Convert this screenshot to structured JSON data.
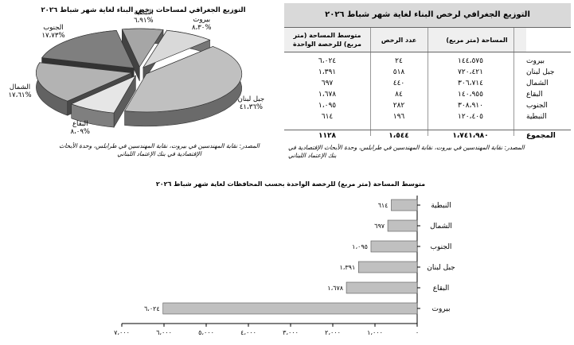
{
  "table": {
    "title": "التوزيع الجغرافي لرخص البناء لغاية شهر شباط ٢٠٢٦",
    "headers": {
      "area": "المساحة (متر مربع)",
      "count": "عدد الرخص",
      "avg": "متوسط المساحة (متر مربع) للرخصة الواحدة"
    },
    "rows": [
      {
        "name": "بيروت",
        "area": "١٤٤،٥٧٥",
        "count": "٢٤",
        "avg": "٦،٠٢٤"
      },
      {
        "name": "جبل لبنان",
        "area": "٧٢٠،٤٢١",
        "count": "٥١٨",
        "avg": "١،٣٩١"
      },
      {
        "name": "الشمال",
        "area": "٣٠٦،٧١٤",
        "count": "٤٤٠",
        "avg": "٦٩٧"
      },
      {
        "name": "البقاع",
        "area": "١٤٠،٩٥٥",
        "count": "٨٤",
        "avg": "١،٦٧٨"
      },
      {
        "name": "الجنوب",
        "area": "٣٠٨،٩١٠",
        "count": "٢٨٢",
        "avg": "١،٠٩٥"
      },
      {
        "name": "النبطية",
        "area": "١٢٠،٤٠٥",
        "count": "١٩٦",
        "avg": "٦١٤"
      }
    ],
    "total": {
      "name": "المجموع",
      "area": "١،٧٤١،٩٨٠",
      "count": "١،٥٤٤",
      "avg": "١١٢٨"
    },
    "source": "المصدر: نقابة المهندسين في بيروت، نقابة المهندسين في طرابلس، وحدة الأبحاث الإقتصادية في بنك الإعتماد اللبناني"
  },
  "pie": {
    "title": "التوزيع الجغرافي لمساحات رخص البناء لغاية شهر شباط ٢٠٢٦",
    "source": "المصدر: نقابة المهندسين في بيروت، نقابة المهندسين في طرابلس، وحدة الأبحاث الإقتصادية في بنك الإعتماد اللبناني"
  },
  "bars": {
    "title": "متوسط المساحة (متر مربع) للرخصة الواحدة بحسب المحافظات لغاية شهر شباط ٢٠٢٦",
    "xticks": [
      "٠",
      "١،٠٠٠",
      "٢،٠٠٠",
      "٣،٠٠٠",
      "٤،٠٠٠",
      "٥،٠٠٠",
      "٦،٠٠٠",
      "٧،٠٠٠"
    ]
  },
  "chart_data": [
    {
      "type": "pie",
      "title": "التوزيع الجغرافي لمساحات رخص البناء لغاية شهر شباط ٢٠٢٦",
      "slices": [
        {
          "label": "بيروت",
          "pct_text": "%٨،٣٠",
          "value": 8.3,
          "color": "#d9d9d9"
        },
        {
          "label": "جبل لبنان",
          "pct_text": "%٤١،٣٦",
          "value": 41.36,
          "color": "#c0c0c0"
        },
        {
          "label": "البقاع",
          "pct_text": "%٨،٠٩",
          "value": 8.09,
          "color": "#e6e6e6"
        },
        {
          "label": "الشمال",
          "pct_text": "%١٧،٦١",
          "value": 17.61,
          "color": "#b3b3b3"
        },
        {
          "label": "الجنوب",
          "pct_text": "%١٧،٧٣",
          "value": 17.73,
          "color": "#7f7f7f"
        },
        {
          "label": "النبطية",
          "pct_text": "%٦،٩١",
          "value": 6.91,
          "color": "#a6a6a6"
        }
      ]
    },
    {
      "type": "bar",
      "orientation": "horizontal",
      "title": "متوسط المساحة (متر مربع) للرخصة الواحدة بحسب المحافظات لغاية شهر شباط ٢٠٢٦",
      "categories": [
        "النبطية",
        "الشمال",
        "الجنوب",
        "جبل لبنان",
        "البقاع",
        "بيروت"
      ],
      "value_labels": [
        "٦١٤",
        "٦٩٧",
        "١،٠٩٥",
        "١،٣٩١",
        "١،٦٧٨",
        "٦،٠٢٤"
      ],
      "values": [
        614,
        697,
        1095,
        1391,
        1678,
        6024
      ],
      "xlim": [
        0,
        7000
      ],
      "x_reversed": true,
      "bar_color": "#c0c0c0"
    }
  ]
}
